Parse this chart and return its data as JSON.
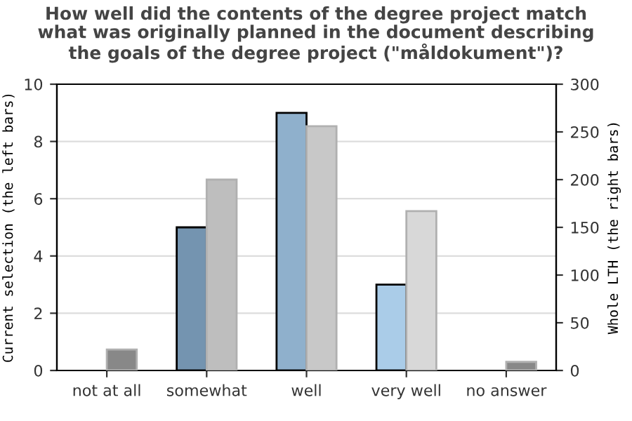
{
  "chart_data": {
    "type": "bar",
    "title": "How well did the contents of the degree project match\nwhat was originally planned in the document describing\nthe goals of the degree project (\"måldokument\")?",
    "ylabel": "Current selection (the left bars)",
    "y2label": "Whole LTH (the right bars)",
    "categories": [
      "not at all",
      "somewhat",
      "well",
      "very well",
      "no answer"
    ],
    "series": [
      {
        "colors": [
          "#7494b0",
          "#7494b0",
          "#8fb0cc",
          "#aacce8",
          "#aacce8"
        ],
        "values": [
          0,
          5,
          9,
          3,
          0
        ]
      },
      {
        "colors": [
          "#888888",
          "#bebebe",
          "#c8c8c8",
          "#d8d8d8",
          "#888888"
        ],
        "values": [
          22,
          200,
          256,
          167,
          9
        ],
        "axis": "y2"
      }
    ],
    "ylim": [
      0,
      10
    ],
    "yticks": [
      0,
      2,
      4,
      6,
      8,
      10
    ],
    "y2lim": [
      0,
      300
    ],
    "y2ticks": [
      0,
      50,
      100,
      150,
      200,
      250,
      300
    ],
    "grid": "y"
  }
}
